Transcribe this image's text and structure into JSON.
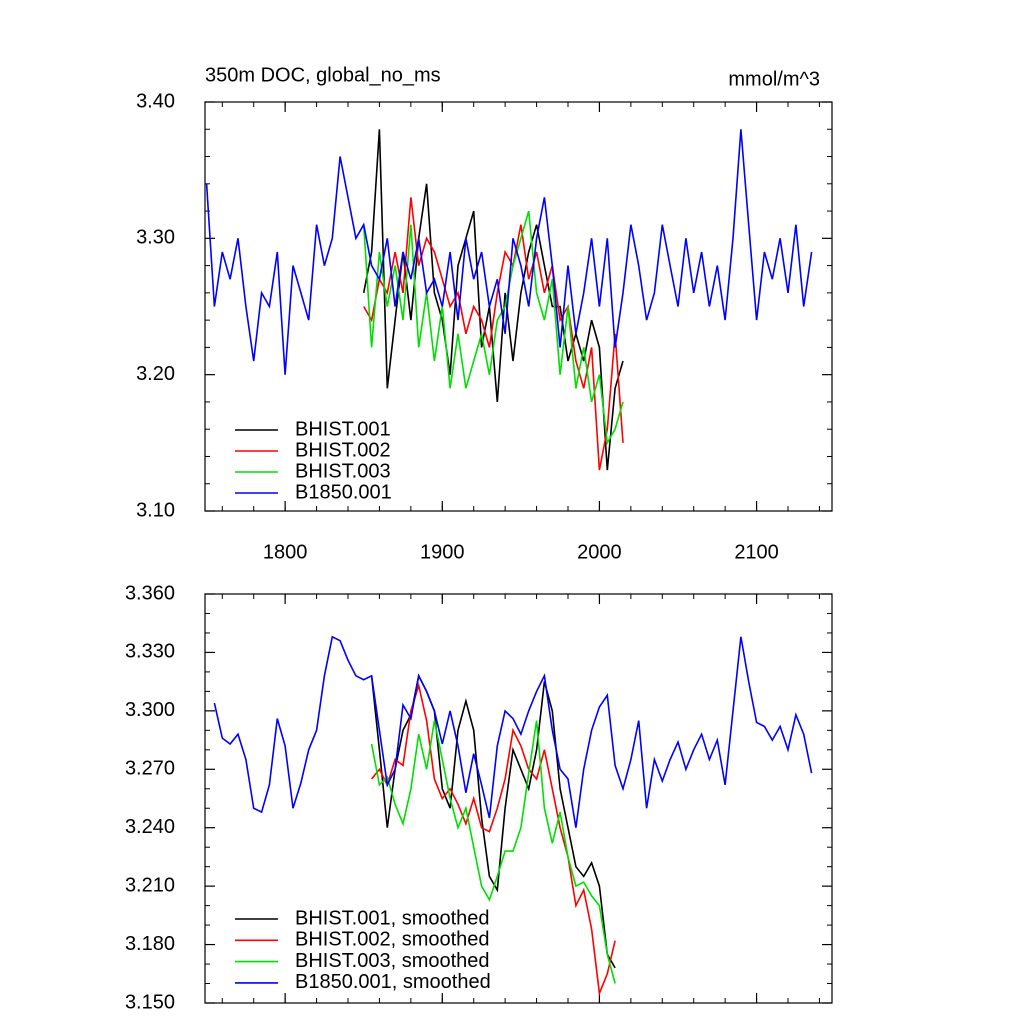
{
  "chart_data": [
    {
      "type": "line",
      "title": "350m DOC, global_no_ms",
      "units": "mmol/m^3",
      "xlim": [
        1749,
        2148
      ],
      "xticks": [
        1800,
        1900,
        2000,
        2100
      ],
      "ylim": [
        3.1,
        3.4
      ],
      "yticks": [
        {
          "value": 3.1,
          "label": "3.10"
        },
        {
          "value": 3.2,
          "label": "3.20"
        },
        {
          "value": 3.3,
          "label": "3.30"
        },
        {
          "value": 3.4,
          "label": "3.40"
        }
      ],
      "legend": "lower left",
      "x": [
        1750,
        1755,
        1760,
        1765,
        1770,
        1775,
        1780,
        1785,
        1790,
        1795,
        1800,
        1805,
        1810,
        1815,
        1820,
        1825,
        1830,
        1835,
        1840,
        1845,
        1850,
        1855,
        1860,
        1865,
        1870,
        1875,
        1880,
        1885,
        1890,
        1895,
        1900,
        1905,
        1910,
        1915,
        1920,
        1925,
        1930,
        1935,
        1940,
        1945,
        1950,
        1955,
        1960,
        1965,
        1970,
        1975,
        1980,
        1985,
        1990,
        1995,
        2000,
        2005,
        2010,
        2015,
        2020,
        2025,
        2030,
        2035,
        2040,
        2045,
        2050,
        2055,
        2060,
        2065,
        2070,
        2075,
        2080,
        2085,
        2090,
        2095,
        2100,
        2105,
        2110,
        2115,
        2120,
        2125,
        2130,
        2135
      ],
      "series": [
        {
          "name": "BHIST.001",
          "color": "#000000",
          "values": [
            null,
            null,
            null,
            null,
            null,
            null,
            null,
            null,
            null,
            null,
            null,
            null,
            null,
            null,
            null,
            null,
            null,
            null,
            null,
            null,
            3.26,
            3.29,
            3.38,
            3.19,
            3.24,
            3.29,
            3.24,
            3.3,
            3.34,
            3.26,
            3.24,
            3.2,
            3.28,
            3.3,
            3.32,
            3.22,
            3.25,
            3.18,
            3.26,
            3.21,
            3.26,
            3.29,
            3.31,
            3.28,
            3.25,
            3.25,
            3.21,
            3.23,
            3.21,
            3.24,
            3.22,
            3.13,
            3.19,
            3.21,
            null,
            null,
            null,
            null,
            null,
            null,
            null,
            null,
            null,
            null,
            null,
            null,
            null,
            null,
            null,
            null,
            null,
            null,
            null,
            null,
            null,
            null,
            null,
            null
          ]
        },
        {
          "name": "BHIST.002",
          "color": "#ff0000",
          "values": [
            null,
            null,
            null,
            null,
            null,
            null,
            null,
            null,
            null,
            null,
            null,
            null,
            null,
            null,
            null,
            null,
            null,
            null,
            null,
            null,
            3.25,
            3.24,
            3.27,
            3.26,
            3.29,
            3.26,
            3.33,
            3.28,
            3.3,
            3.29,
            3.27,
            3.25,
            3.26,
            3.23,
            3.25,
            3.24,
            3.22,
            3.26,
            3.29,
            3.28,
            3.31,
            3.27,
            3.29,
            3.26,
            3.28,
            3.24,
            3.25,
            3.21,
            3.19,
            3.22,
            3.13,
            3.16,
            3.23,
            3.15,
            null,
            null,
            null,
            null,
            null,
            null,
            null,
            null,
            null,
            null,
            null,
            null,
            null,
            null,
            null,
            null,
            null,
            null,
            null,
            null,
            null,
            null,
            null,
            null
          ]
        },
        {
          "name": "BHIST.003",
          "color": "#00e000",
          "values": [
            null,
            null,
            null,
            null,
            null,
            null,
            null,
            null,
            null,
            null,
            null,
            null,
            null,
            null,
            null,
            null,
            null,
            null,
            null,
            null,
            3.31,
            3.22,
            3.29,
            3.25,
            3.28,
            3.24,
            3.31,
            3.22,
            3.26,
            3.21,
            3.25,
            3.19,
            3.23,
            3.19,
            3.21,
            3.23,
            3.2,
            3.24,
            3.25,
            3.28,
            3.3,
            3.32,
            3.26,
            3.24,
            3.27,
            3.2,
            3.25,
            3.19,
            3.22,
            3.18,
            3.2,
            3.15,
            3.16,
            3.18,
            null,
            null,
            null,
            null,
            null,
            null,
            null,
            null,
            null,
            null,
            null,
            null,
            null,
            null,
            null,
            null,
            null,
            null,
            null,
            null,
            null,
            null,
            null,
            null
          ]
        },
        {
          "name": "B1850.001",
          "color": "#0000ff",
          "values": [
            3.34,
            3.25,
            3.29,
            3.27,
            3.3,
            3.25,
            3.21,
            3.26,
            3.25,
            3.29,
            3.2,
            3.28,
            3.26,
            3.24,
            3.31,
            3.28,
            3.3,
            3.36,
            3.33,
            3.3,
            3.31,
            3.28,
            3.27,
            3.3,
            3.25,
            3.29,
            3.27,
            3.3,
            3.26,
            3.27,
            3.25,
            3.29,
            3.24,
            3.3,
            3.27,
            3.29,
            3.25,
            3.27,
            3.23,
            3.3,
            3.28,
            3.25,
            3.3,
            3.33,
            3.28,
            3.22,
            3.28,
            3.23,
            3.26,
            3.3,
            3.25,
            3.3,
            3.22,
            3.26,
            3.31,
            3.28,
            3.24,
            3.26,
            3.31,
            3.28,
            3.25,
            3.3,
            3.26,
            3.29,
            3.25,
            3.28,
            3.24,
            3.3,
            3.38,
            3.31,
            3.24,
            3.29,
            3.27,
            3.3,
            3.26,
            3.31,
            3.25,
            3.29
          ]
        }
      ]
    },
    {
      "type": "line",
      "xlim": [
        1749,
        2148
      ],
      "ylim": [
        3.15,
        3.36
      ],
      "yticks": [
        {
          "value": 3.15,
          "label": "3.150"
        },
        {
          "value": 3.18,
          "label": "3.180"
        },
        {
          "value": 3.21,
          "label": "3.210"
        },
        {
          "value": 3.24,
          "label": "3.240"
        },
        {
          "value": 3.27,
          "label": "3.270"
        },
        {
          "value": 3.3,
          "label": "3.300"
        },
        {
          "value": 3.33,
          "label": "3.330"
        },
        {
          "value": 3.36,
          "label": "3.360"
        }
      ],
      "legend": "lower left",
      "x": [
        1755,
        1760,
        1765,
        1770,
        1775,
        1780,
        1785,
        1790,
        1795,
        1800,
        1805,
        1810,
        1815,
        1820,
        1825,
        1830,
        1835,
        1840,
        1845,
        1850,
        1855,
        1860,
        1865,
        1870,
        1875,
        1880,
        1885,
        1890,
        1895,
        1900,
        1905,
        1910,
        1915,
        1920,
        1925,
        1930,
        1935,
        1940,
        1945,
        1950,
        1955,
        1960,
        1965,
        1970,
        1975,
        1980,
        1985,
        1990,
        1995,
        2000,
        2005,
        2010,
        2015,
        2020,
        2025,
        2030,
        2035,
        2040,
        2045,
        2050,
        2055,
        2060,
        2065,
        2070,
        2075,
        2080,
        2085,
        2090,
        2095,
        2100,
        2105,
        2110,
        2115,
        2120,
        2125,
        2130,
        2135
      ],
      "series": [
        {
          "name": "BHIST.001, smoothed",
          "color": "#000000",
          "values": [
            null,
            null,
            null,
            null,
            null,
            null,
            null,
            null,
            null,
            null,
            null,
            null,
            null,
            null,
            null,
            null,
            null,
            null,
            null,
            null,
            3.318,
            3.28,
            3.24,
            3.27,
            3.29,
            3.298,
            3.318,
            3.31,
            3.3,
            3.26,
            3.25,
            3.29,
            3.305,
            3.29,
            3.245,
            3.215,
            3.208,
            3.25,
            3.28,
            3.27,
            3.26,
            3.28,
            3.315,
            3.3,
            3.26,
            3.24,
            3.22,
            3.215,
            3.222,
            3.21,
            3.175,
            3.168,
            null,
            null,
            null,
            null,
            null,
            null,
            null,
            null,
            null,
            null,
            null,
            null,
            null,
            null,
            null,
            null,
            null,
            null,
            null,
            null,
            null,
            null,
            null,
            null,
            null
          ]
        },
        {
          "name": "BHIST.002, smoothed",
          "color": "#ff0000",
          "values": [
            null,
            null,
            null,
            null,
            null,
            null,
            null,
            null,
            null,
            null,
            null,
            null,
            null,
            null,
            null,
            null,
            null,
            null,
            null,
            null,
            3.265,
            3.27,
            3.262,
            3.275,
            3.272,
            3.3,
            3.313,
            3.295,
            3.265,
            3.255,
            3.26,
            3.252,
            3.242,
            3.255,
            3.24,
            3.238,
            3.25,
            3.265,
            3.29,
            3.282,
            3.27,
            3.265,
            3.28,
            3.26,
            3.24,
            3.225,
            3.2,
            3.208,
            3.188,
            3.155,
            3.165,
            3.182,
            null,
            null,
            null,
            null,
            null,
            null,
            null,
            null,
            null,
            null,
            null,
            null,
            null,
            null,
            null,
            null,
            null,
            null,
            null,
            null,
            null,
            null,
            null,
            null,
            null
          ]
        },
        {
          "name": "BHIST.003, smoothed",
          "color": "#00e000",
          "values": [
            null,
            null,
            null,
            null,
            null,
            null,
            null,
            null,
            null,
            null,
            null,
            null,
            null,
            null,
            null,
            null,
            null,
            null,
            null,
            null,
            3.283,
            3.262,
            3.266,
            3.252,
            3.242,
            3.26,
            3.288,
            3.27,
            3.295,
            3.275,
            3.255,
            3.24,
            3.25,
            3.23,
            3.21,
            3.203,
            3.215,
            3.228,
            3.228,
            3.24,
            3.268,
            3.295,
            3.25,
            3.232,
            3.248,
            3.225,
            3.21,
            3.212,
            3.205,
            3.2,
            3.175,
            3.16,
            null,
            null,
            null,
            null,
            null,
            null,
            null,
            null,
            null,
            null,
            null,
            null,
            null,
            null,
            null,
            null,
            null,
            null,
            null,
            null,
            null,
            null,
            null,
            null,
            null
          ]
        },
        {
          "name": "B1850.001, smoothed",
          "color": "#0000ff",
          "values": [
            3.304,
            3.286,
            3.283,
            3.288,
            3.275,
            3.25,
            3.248,
            3.262,
            3.296,
            3.282,
            3.25,
            3.263,
            3.28,
            3.29,
            3.318,
            3.338,
            3.336,
            3.326,
            3.318,
            3.316,
            3.318,
            3.29,
            3.262,
            3.27,
            3.303,
            3.296,
            3.318,
            3.31,
            3.3,
            3.283,
            3.3,
            3.282,
            3.258,
            3.278,
            3.262,
            3.245,
            3.282,
            3.3,
            3.296,
            3.288,
            3.3,
            3.31,
            3.318,
            3.29,
            3.27,
            3.265,
            3.24,
            3.27,
            3.29,
            3.302,
            3.308,
            3.272,
            3.26,
            3.275,
            3.295,
            3.25,
            3.275,
            3.264,
            3.275,
            3.284,
            3.27,
            3.28,
            3.288,
            3.275,
            3.285,
            3.262,
            3.3,
            3.338,
            3.315,
            3.294,
            3.292,
            3.285,
            3.292,
            3.28,
            3.298,
            3.288,
            3.268
          ]
        }
      ]
    }
  ]
}
